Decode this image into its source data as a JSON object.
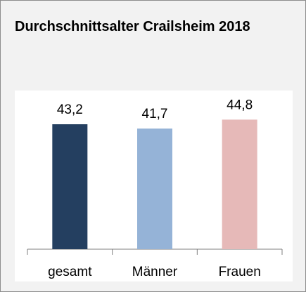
{
  "chart_data": {
    "type": "bar",
    "title": "Durchschnittsalter Crailsheim 2018",
    "categories": [
      "gesamt",
      "Männer",
      "Frauen"
    ],
    "values": [
      43.2,
      41.7,
      44.8
    ],
    "value_labels": [
      "43,2",
      "41,7",
      "44,8"
    ],
    "colors": [
      "#243f60",
      "#95b3d7",
      "#e6b9b8"
    ],
    "ylim": [
      0,
      50
    ]
  }
}
